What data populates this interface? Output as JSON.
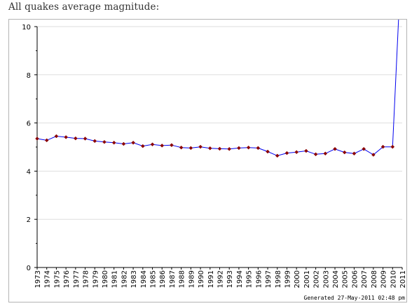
{
  "page": {
    "title": "All quakes average magnitude:"
  },
  "chart_data": {
    "type": "line",
    "title": "",
    "xlabel": "",
    "ylabel": "",
    "x": [
      1973,
      1974,
      1975,
      1976,
      1977,
      1978,
      1979,
      1980,
      1981,
      1982,
      1983,
      1984,
      1985,
      1986,
      1987,
      1988,
      1989,
      1990,
      1991,
      1992,
      1993,
      1994,
      1995,
      1996,
      1997,
      1998,
      1999,
      2000,
      2001,
      2002,
      2003,
      2004,
      2005,
      2006,
      2007,
      2008,
      2009,
      2010,
      2011
    ],
    "series": [
      {
        "values": [
          5.35,
          5.28,
          5.45,
          5.41,
          5.36,
          5.35,
          5.25,
          5.21,
          5.18,
          5.13,
          5.18,
          5.04,
          5.11,
          5.06,
          5.08,
          4.98,
          4.96,
          5.01,
          4.95,
          4.93,
          4.92,
          4.96,
          4.98,
          4.96,
          4.81,
          4.64,
          4.75,
          4.79,
          4.84,
          4.7,
          4.73,
          4.92,
          4.78,
          4.73,
          4.92,
          4.68,
          5.01,
          5.01,
          null
        ],
        "line_color": "#0000ee",
        "marker_color": "#8b0000"
      }
    ],
    "final_segment_note": "line rises off the top of the plot after 2010",
    "ylim": [
      0,
      10
    ],
    "yticks": [
      0,
      2,
      4,
      6,
      8,
      10
    ],
    "grid": true,
    "legend": "none",
    "footer": "Generated 27-May-2011 02:48 pm"
  }
}
